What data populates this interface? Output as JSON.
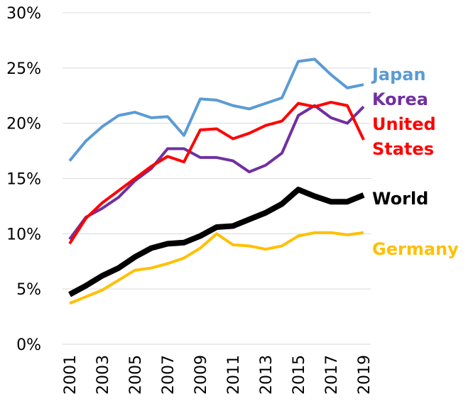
{
  "chart_data": {
    "type": "line",
    "x": [
      2001,
      2002,
      2003,
      2004,
      2005,
      2006,
      2007,
      2008,
      2009,
      2010,
      2011,
      2012,
      2013,
      2014,
      2015,
      2016,
      2017,
      2018,
      2019
    ],
    "xlim": [
      2001,
      2019
    ],
    "xticks": [
      2001,
      2003,
      2005,
      2007,
      2009,
      2011,
      2013,
      2015,
      2017,
      2019
    ],
    "ylim": [
      0,
      30
    ],
    "yticks": [
      {
        "value": 0,
        "label": "0%"
      },
      {
        "value": 5,
        "label": "5%"
      },
      {
        "value": 10,
        "label": "10%"
      },
      {
        "value": 15,
        "label": "15%"
      },
      {
        "value": 20,
        "label": "20%"
      },
      {
        "value": 25,
        "label": "25%"
      },
      {
        "value": 30,
        "label": "30%"
      }
    ],
    "grid": true,
    "series": [
      {
        "name": "Japan",
        "color": "#5b9bd5",
        "line_width": 4,
        "values": [
          16.6,
          18.4,
          19.7,
          20.7,
          21.0,
          20.5,
          20.6,
          18.9,
          22.2,
          22.1,
          21.6,
          21.3,
          21.8,
          22.3,
          25.6,
          25.8,
          24.4,
          23.2,
          23.5
        ]
      },
      {
        "name": "Korea",
        "color": "#7030a0",
        "line_width": 4,
        "values": [
          9.5,
          11.5,
          12.3,
          13.3,
          14.8,
          15.9,
          17.7,
          17.7,
          16.9,
          16.9,
          16.6,
          15.6,
          16.2,
          17.3,
          20.7,
          21.6,
          20.5,
          20.0,
          21.5
        ]
      },
      {
        "name": "United States",
        "color": "#ff0000",
        "line_width": 4,
        "values": [
          9.1,
          11.4,
          12.8,
          13.9,
          15.0,
          16.1,
          17.0,
          16.5,
          19.4,
          19.5,
          18.6,
          19.1,
          19.8,
          20.2,
          21.8,
          21.5,
          21.9,
          21.6,
          18.5
        ]
      },
      {
        "name": "World",
        "color": "#000000",
        "line_width": 8,
        "values": [
          4.5,
          5.3,
          6.2,
          6.9,
          7.9,
          8.7,
          9.1,
          9.2,
          9.8,
          10.6,
          10.7,
          11.3,
          11.9,
          12.7,
          14.0,
          13.4,
          12.9,
          12.9,
          13.5
        ]
      },
      {
        "name": "Germany",
        "color": "#ffc000",
        "line_width": 4,
        "values": [
          3.7,
          4.3,
          4.9,
          5.8,
          6.7,
          6.9,
          7.3,
          7.8,
          8.7,
          10.0,
          9.0,
          8.9,
          8.6,
          8.9,
          9.8,
          10.1,
          10.1,
          9.9,
          10.1
        ]
      }
    ]
  }
}
